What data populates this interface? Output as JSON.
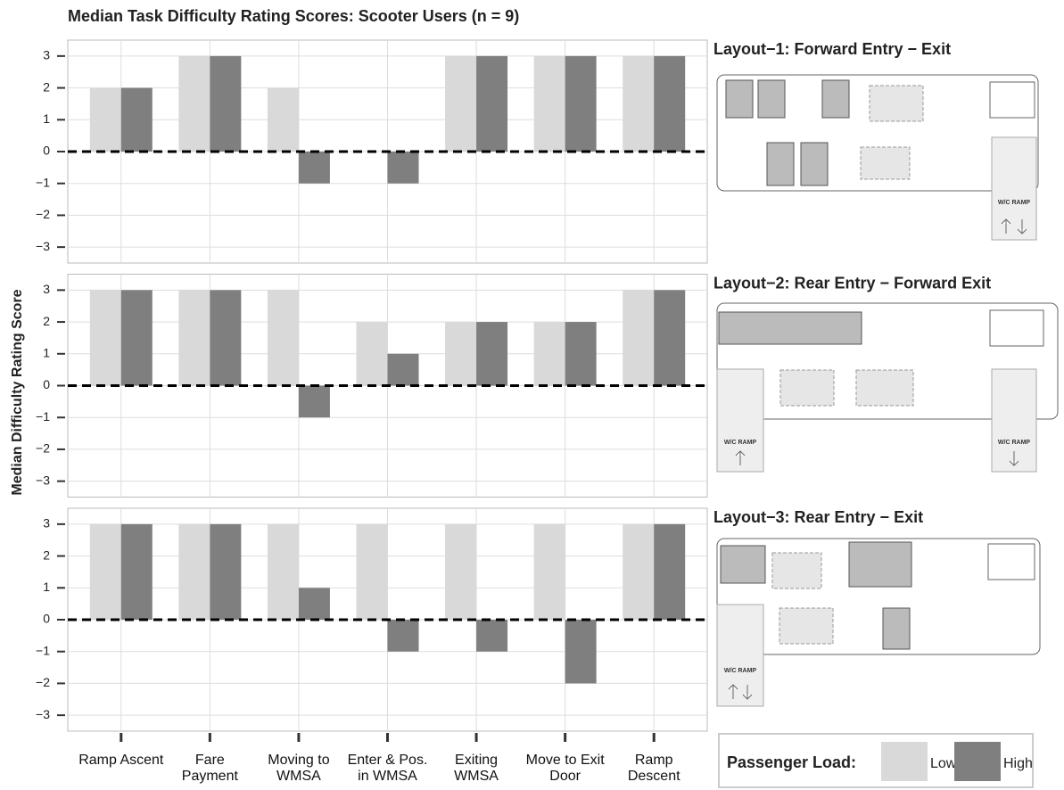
{
  "chart_data": {
    "type": "bar",
    "title": "Median Task Difficulty Rating Scores: Scooter Users (n = 9)",
    "y_label": "Median Difficulty Rating Score",
    "categories": [
      "Ramp Ascent",
      "Fare Payment",
      "Moving to WMSA",
      "Enter & Pos. in WMSA",
      "Exiting WMSA",
      "Move to Exit Door",
      "Ramp Descent"
    ],
    "ylim": [
      -3.5,
      3.5
    ],
    "yticks": [
      {
        "value": -3,
        "label": "−3"
      },
      {
        "value": -2,
        "label": "−2"
      },
      {
        "value": -1,
        "label": "−1"
      },
      0,
      1,
      2,
      3
    ],
    "grid": true,
    "zero_line": true,
    "legend_title": "Passenger Load:",
    "ramp_label": "W/C RAMP",
    "series": [
      {
        "name": "Low",
        "color": "#d9d9d9"
      },
      {
        "name": "High",
        "color": "#7f7f7f"
      }
    ],
    "panels": [
      {
        "title": "Layout−1: Forward Entry − Exit",
        "values": [
          [
            2,
            3,
            2,
            0,
            3,
            3,
            3
          ],
          [
            2,
            3,
            -1,
            -1,
            3,
            3,
            3
          ]
        ]
      },
      {
        "title": "Layout−2: Rear Entry − Forward Exit",
        "values": [
          [
            3,
            3,
            3,
            2,
            2,
            2,
            3
          ],
          [
            3,
            3,
            -1,
            1,
            2,
            2,
            3
          ]
        ]
      },
      {
        "title": "Layout−3: Rear Entry −  Exit",
        "values": [
          [
            3,
            3,
            3,
            3,
            3,
            3,
            3
          ],
          [
            3,
            3,
            1,
            -1,
            -1,
            -2,
            3
          ]
        ]
      }
    ]
  }
}
